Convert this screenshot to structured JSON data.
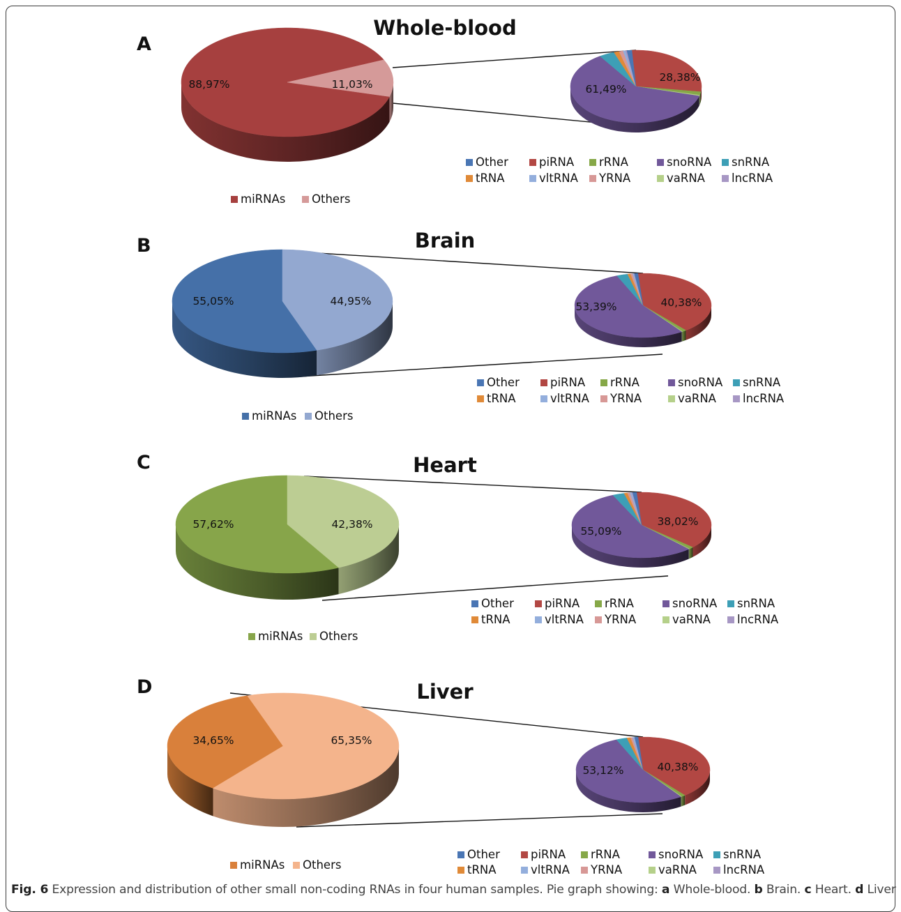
{
  "colors": {
    "Other": "#4a76b4",
    "piRNA": "#b24743",
    "rRNA": "#86a848",
    "snoRNA": "#71589a",
    "snRNA": "#3d9fb6",
    "tRNA": "#e08a38",
    "vltRNA": "#93aedc",
    "YRNA": "#d79896",
    "vaRNA": "#b5d08a",
    "lncRNA": "#a797c4"
  },
  "legend_small": [
    [
      "Other",
      "piRNA",
      "rRNA",
      "snoRNA",
      "snRNA"
    ],
    [
      "tRNA",
      "vltRNA",
      "YRNA",
      "vaRNA",
      "lncRNA"
    ]
  ],
  "chart_data": [
    {
      "type": "pie",
      "letter": "A",
      "title": "Whole-blood",
      "main": {
        "slices": [
          {
            "name": "miRNAs",
            "value": 88.97,
            "label": "88,97%",
            "color": "#a6403f"
          },
          {
            "name": "Others",
            "value": 11.03,
            "label": "11,03%",
            "color": "#d59a99"
          }
        ]
      },
      "sub": {
        "slices": [
          {
            "name": "Other",
            "value": 1.2
          },
          {
            "name": "piRNA",
            "value": 28.38,
            "label": "28,38%"
          },
          {
            "name": "rRNA",
            "value": 1.5
          },
          {
            "name": "snoRNA",
            "value": 61.49,
            "label": "61,49%"
          },
          {
            "name": "snRNA",
            "value": 3.8
          },
          {
            "name": "tRNA",
            "value": 1.3
          },
          {
            "name": "vltRNA",
            "value": 0.6
          },
          {
            "name": "YRNA",
            "value": 1.0
          },
          {
            "name": "vaRNA",
            "value": 0.4
          },
          {
            "name": "lncRNA",
            "value": 0.33
          }
        ]
      },
      "legend_main": [
        "miRNAs",
        "Others"
      ]
    },
    {
      "type": "pie",
      "letter": "B",
      "title": "Brain",
      "main": {
        "slices": [
          {
            "name": "miRNAs",
            "value": 55.05,
            "label": "55,05%",
            "color": "#4570a8"
          },
          {
            "name": "Others",
            "value": 44.95,
            "label": "44,95%",
            "color": "#93a8d0"
          }
        ]
      },
      "sub": {
        "slices": [
          {
            "name": "Other",
            "value": 0.8
          },
          {
            "name": "piRNA",
            "value": 40.38,
            "label": "40,38%"
          },
          {
            "name": "rRNA",
            "value": 1.0
          },
          {
            "name": "snoRNA",
            "value": 53.39,
            "label": "53,39%"
          },
          {
            "name": "snRNA",
            "value": 2.6
          },
          {
            "name": "tRNA",
            "value": 0.7
          },
          {
            "name": "vltRNA",
            "value": 0.3
          },
          {
            "name": "YRNA",
            "value": 0.5
          },
          {
            "name": "vaRNA",
            "value": 0.2
          },
          {
            "name": "lncRNA",
            "value": 0.13
          }
        ]
      },
      "legend_main": [
        "miRNAs",
        "Others"
      ]
    },
    {
      "type": "pie",
      "letter": "C",
      "title": "Heart",
      "main": {
        "slices": [
          {
            "name": "miRNAs",
            "value": 57.62,
            "label": "57,62%",
            "color": "#87a54a"
          },
          {
            "name": "Others",
            "value": 42.38,
            "label": "42,38%",
            "color": "#bccd93"
          }
        ]
      },
      "sub": {
        "slices": [
          {
            "name": "Other",
            "value": 0.9
          },
          {
            "name": "piRNA",
            "value": 38.02,
            "label": "38,02%"
          },
          {
            "name": "rRNA",
            "value": 1.1
          },
          {
            "name": "snoRNA",
            "value": 55.09,
            "label": "55,09%"
          },
          {
            "name": "snRNA",
            "value": 2.7
          },
          {
            "name": "tRNA",
            "value": 0.8
          },
          {
            "name": "vltRNA",
            "value": 0.4
          },
          {
            "name": "YRNA",
            "value": 0.6
          },
          {
            "name": "vaRNA",
            "value": 0.2
          },
          {
            "name": "lncRNA",
            "value": 0.19
          }
        ]
      },
      "legend_main": [
        "miRNAs",
        "Others"
      ]
    },
    {
      "type": "pie",
      "letter": "D",
      "title": "Liver",
      "main": {
        "slices": [
          {
            "name": "miRNAs",
            "value": 34.65,
            "label": "34,65%",
            "color": "#d9803b"
          },
          {
            "name": "Others",
            "value": 65.35,
            "label": "65,35%",
            "color": "#f4b48c"
          }
        ]
      },
      "sub": {
        "slices": [
          {
            "name": "Other",
            "value": 0.8
          },
          {
            "name": "piRNA",
            "value": 40.38,
            "label": "40,38%"
          },
          {
            "name": "rRNA",
            "value": 1.0
          },
          {
            "name": "snoRNA",
            "value": 53.12,
            "label": "53,12%"
          },
          {
            "name": "snRNA",
            "value": 2.6
          },
          {
            "name": "tRNA",
            "value": 0.9
          },
          {
            "name": "vltRNA",
            "value": 0.4
          },
          {
            "name": "YRNA",
            "value": 0.5
          },
          {
            "name": "vaRNA",
            "value": 0.2
          },
          {
            "name": "lncRNA",
            "value": 0.1
          }
        ]
      },
      "legend_main": [
        "miRNAs",
        "Others"
      ]
    }
  ],
  "caption": {
    "figure": "Fig. 6",
    "text1": " Expression and distribution of other small non-coding RNAs in four human samples. Pie graph showing: ",
    "a": "a",
    "a_text": " Whole-blood. ",
    "b": "b",
    "b_text": " Brain. ",
    "c": "c",
    "c_text": " Heart. ",
    "d": "d",
    "d_text": " Liver"
  }
}
